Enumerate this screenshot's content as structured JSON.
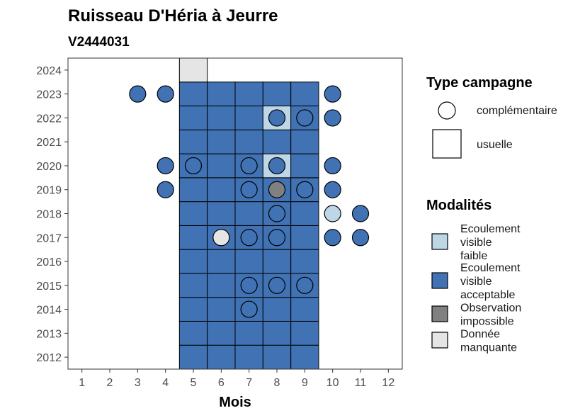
{
  "chart_data": {
    "type": "heatmap",
    "title": "Ruisseau D'Héria à Jeurre",
    "subtitle": "V2444031",
    "xlabel": "Mois",
    "ylabel": "",
    "x_ticks": [
      "1",
      "2",
      "3",
      "4",
      "5",
      "6",
      "7",
      "8",
      "9",
      "10",
      "11",
      "12"
    ],
    "y_ticks": [
      "2012",
      "2013",
      "2014",
      "2015",
      "2016",
      "2017",
      "2018",
      "2019",
      "2020",
      "2021",
      "2022",
      "2023",
      "2024"
    ],
    "xlim": [
      0.5,
      12.5
    ],
    "ylim": [
      2011.5,
      2024.5
    ],
    "grid": false,
    "legend_position": "right",
    "colors": {
      "faible": "#BDD7E7",
      "acceptable": "#4072B4",
      "impossible": "#808080",
      "manquante": "#E5E5E5"
    },
    "legend_type": {
      "title": "Type campagne",
      "items": [
        {
          "shape": "circle",
          "label": "complémentaire"
        },
        {
          "shape": "square",
          "label": "usuelle"
        }
      ]
    },
    "legend_modalites": {
      "title": "Modalités",
      "items": [
        {
          "key": "faible",
          "lines": [
            "Ecoulement",
            "visible",
            "faible"
          ]
        },
        {
          "key": "acceptable",
          "lines": [
            "Ecoulement",
            "visible",
            "acceptable"
          ]
        },
        {
          "key": "impossible",
          "lines": [
            "Observation",
            "impossible"
          ]
        },
        {
          "key": "manquante",
          "lines": [
            "Donnée",
            "manquante"
          ]
        }
      ]
    },
    "usuelle": [
      {
        "year": 2012,
        "month": 5,
        "m": "acceptable"
      },
      {
        "year": 2012,
        "month": 6,
        "m": "acceptable"
      },
      {
        "year": 2012,
        "month": 7,
        "m": "acceptable"
      },
      {
        "year": 2012,
        "month": 8,
        "m": "acceptable"
      },
      {
        "year": 2012,
        "month": 9,
        "m": "acceptable"
      },
      {
        "year": 2013,
        "month": 5,
        "m": "acceptable"
      },
      {
        "year": 2013,
        "month": 6,
        "m": "acceptable"
      },
      {
        "year": 2013,
        "month": 7,
        "m": "acceptable"
      },
      {
        "year": 2013,
        "month": 8,
        "m": "acceptable"
      },
      {
        "year": 2013,
        "month": 9,
        "m": "acceptable"
      },
      {
        "year": 2014,
        "month": 5,
        "m": "acceptable"
      },
      {
        "year": 2014,
        "month": 6,
        "m": "acceptable"
      },
      {
        "year": 2014,
        "month": 7,
        "m": "acceptable"
      },
      {
        "year": 2014,
        "month": 8,
        "m": "acceptable"
      },
      {
        "year": 2014,
        "month": 9,
        "m": "acceptable"
      },
      {
        "year": 2015,
        "month": 5,
        "m": "acceptable"
      },
      {
        "year": 2015,
        "month": 6,
        "m": "acceptable"
      },
      {
        "year": 2015,
        "month": 7,
        "m": "acceptable"
      },
      {
        "year": 2015,
        "month": 8,
        "m": "acceptable"
      },
      {
        "year": 2015,
        "month": 9,
        "m": "acceptable"
      },
      {
        "year": 2016,
        "month": 5,
        "m": "acceptable"
      },
      {
        "year": 2016,
        "month": 6,
        "m": "acceptable"
      },
      {
        "year": 2016,
        "month": 7,
        "m": "acceptable"
      },
      {
        "year": 2016,
        "month": 8,
        "m": "acceptable"
      },
      {
        "year": 2016,
        "month": 9,
        "m": "acceptable"
      },
      {
        "year": 2017,
        "month": 5,
        "m": "acceptable"
      },
      {
        "year": 2017,
        "month": 6,
        "m": "acceptable"
      },
      {
        "year": 2017,
        "month": 7,
        "m": "acceptable"
      },
      {
        "year": 2017,
        "month": 8,
        "m": "acceptable"
      },
      {
        "year": 2017,
        "month": 9,
        "m": "acceptable"
      },
      {
        "year": 2018,
        "month": 5,
        "m": "acceptable"
      },
      {
        "year": 2018,
        "month": 6,
        "m": "acceptable"
      },
      {
        "year": 2018,
        "month": 7,
        "m": "acceptable"
      },
      {
        "year": 2018,
        "month": 8,
        "m": "acceptable"
      },
      {
        "year": 2018,
        "month": 9,
        "m": "acceptable"
      },
      {
        "year": 2019,
        "month": 5,
        "m": "acceptable"
      },
      {
        "year": 2019,
        "month": 6,
        "m": "acceptable"
      },
      {
        "year": 2019,
        "month": 7,
        "m": "acceptable"
      },
      {
        "year": 2019,
        "month": 8,
        "m": "acceptable"
      },
      {
        "year": 2019,
        "month": 9,
        "m": "acceptable"
      },
      {
        "year": 2020,
        "month": 5,
        "m": "acceptable"
      },
      {
        "year": 2020,
        "month": 6,
        "m": "acceptable"
      },
      {
        "year": 2020,
        "month": 7,
        "m": "acceptable"
      },
      {
        "year": 2020,
        "month": 8,
        "m": "faible"
      },
      {
        "year": 2020,
        "month": 9,
        "m": "acceptable"
      },
      {
        "year": 2021,
        "month": 5,
        "m": "acceptable"
      },
      {
        "year": 2021,
        "month": 6,
        "m": "acceptable"
      },
      {
        "year": 2021,
        "month": 7,
        "m": "acceptable"
      },
      {
        "year": 2021,
        "month": 8,
        "m": "acceptable"
      },
      {
        "year": 2021,
        "month": 9,
        "m": "acceptable"
      },
      {
        "year": 2022,
        "month": 5,
        "m": "acceptable"
      },
      {
        "year": 2022,
        "month": 6,
        "m": "acceptable"
      },
      {
        "year": 2022,
        "month": 7,
        "m": "acceptable"
      },
      {
        "year": 2022,
        "month": 8,
        "m": "faible"
      },
      {
        "year": 2022,
        "month": 9,
        "m": "acceptable"
      },
      {
        "year": 2023,
        "month": 5,
        "m": "acceptable"
      },
      {
        "year": 2023,
        "month": 6,
        "m": "acceptable"
      },
      {
        "year": 2023,
        "month": 7,
        "m": "acceptable"
      },
      {
        "year": 2023,
        "month": 8,
        "m": "acceptable"
      },
      {
        "year": 2023,
        "month": 9,
        "m": "acceptable"
      },
      {
        "year": 2024,
        "month": 5,
        "m": "manquante"
      }
    ],
    "complementaire": [
      {
        "year": 2023,
        "month": 3,
        "m": "acceptable"
      },
      {
        "year": 2023,
        "month": 4,
        "m": "acceptable"
      },
      {
        "year": 2023,
        "month": 10,
        "m": "acceptable"
      },
      {
        "year": 2022,
        "month": 8,
        "m": "acceptable"
      },
      {
        "year": 2022,
        "month": 9,
        "m": "acceptable"
      },
      {
        "year": 2022,
        "month": 10,
        "m": "acceptable"
      },
      {
        "year": 2020,
        "month": 4,
        "m": "acceptable"
      },
      {
        "year": 2020,
        "month": 5,
        "m": "acceptable"
      },
      {
        "year": 2020,
        "month": 7,
        "m": "acceptable"
      },
      {
        "year": 2020,
        "month": 8,
        "m": "acceptable"
      },
      {
        "year": 2020,
        "month": 10,
        "m": "acceptable"
      },
      {
        "year": 2019,
        "month": 4,
        "m": "acceptable"
      },
      {
        "year": 2019,
        "month": 7,
        "m": "acceptable"
      },
      {
        "year": 2019,
        "month": 8,
        "m": "impossible"
      },
      {
        "year": 2019,
        "month": 9,
        "m": "acceptable"
      },
      {
        "year": 2019,
        "month": 10,
        "m": "acceptable"
      },
      {
        "year": 2018,
        "month": 8,
        "m": "acceptable"
      },
      {
        "year": 2018,
        "month": 10,
        "m": "faible"
      },
      {
        "year": 2018,
        "month": 11,
        "m": "acceptable"
      },
      {
        "year": 2017,
        "month": 6,
        "m": "manquante"
      },
      {
        "year": 2017,
        "month": 7,
        "m": "acceptable"
      },
      {
        "year": 2017,
        "month": 8,
        "m": "acceptable"
      },
      {
        "year": 2017,
        "month": 10,
        "m": "acceptable"
      },
      {
        "year": 2017,
        "month": 11,
        "m": "acceptable"
      },
      {
        "year": 2015,
        "month": 7,
        "m": "acceptable"
      },
      {
        "year": 2015,
        "month": 8,
        "m": "acceptable"
      },
      {
        "year": 2015,
        "month": 9,
        "m": "acceptable"
      },
      {
        "year": 2014,
        "month": 7,
        "m": "acceptable"
      }
    ]
  }
}
